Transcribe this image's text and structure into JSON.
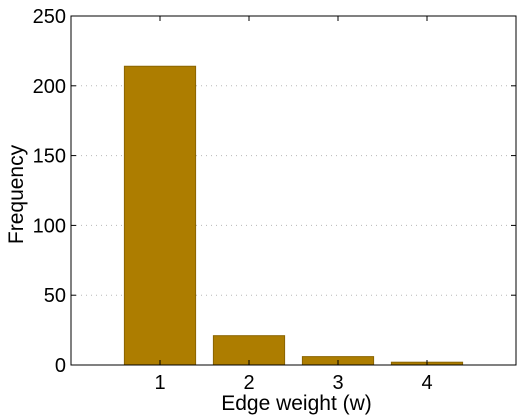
{
  "chart_data": {
    "type": "bar",
    "categories": [
      "1",
      "2",
      "3",
      "4"
    ],
    "x": [
      1,
      2,
      3,
      4
    ],
    "values": [
      214,
      21,
      6,
      2
    ],
    "xlabel": "Edge weight (w)",
    "ylabel": "Frequency",
    "xlim": [
      0,
      5
    ],
    "ylim": [
      0,
      250
    ],
    "yticks": [
      0,
      50,
      100,
      150,
      200,
      250
    ],
    "grid": "y-dotted",
    "legend": "none",
    "colors": {
      "bar": "#ad7d00",
      "bar_edge": "#8a6400"
    }
  }
}
